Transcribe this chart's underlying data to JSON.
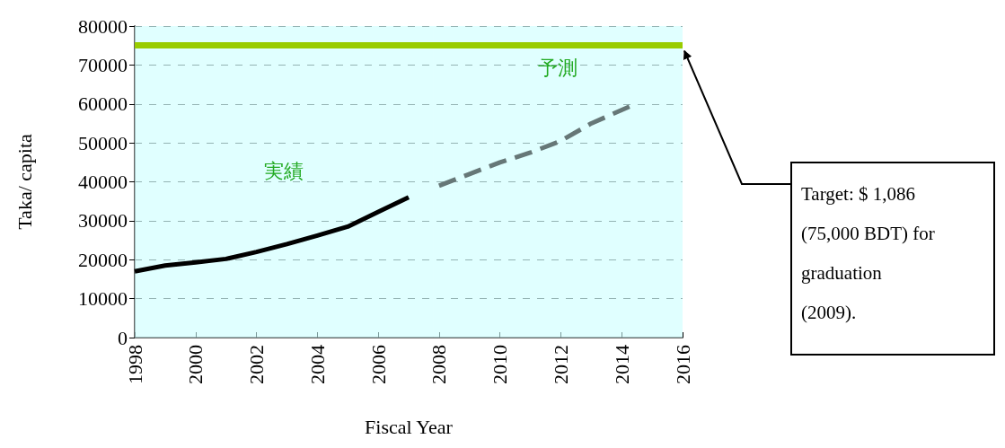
{
  "chart_data": {
    "type": "line",
    "xlabel": "Fiscal Year",
    "ylabel": "Taka/ capita",
    "xlim": [
      1998,
      2016
    ],
    "xticks": [
      1998,
      2000,
      2002,
      2004,
      2006,
      2008,
      2010,
      2012,
      2014,
      2016
    ],
    "ylim": [
      0,
      80000
    ],
    "yticks": [
      0,
      10000,
      20000,
      30000,
      40000,
      50000,
      60000,
      70000,
      80000
    ],
    "grid": "y",
    "marker": "none",
    "series": [
      {
        "color": "#000000",
        "line_style": "solid",
        "x": [
          1998,
          1999,
          2000,
          2001,
          2002,
          2003,
          2004,
          2005,
          2006,
          2007
        ],
        "values": [
          17000,
          18500,
          19300,
          20200,
          22000,
          24000,
          26200,
          28500,
          32300,
          36000
        ]
      },
      {
        "color": "#667777",
        "line_style": "dashed",
        "x": [
          2008,
          2009,
          2010,
          2011,
          2012,
          2013,
          2014.4
        ],
        "values": [
          39000,
          42000,
          45000,
          47500,
          50500,
          55000,
          59800
        ]
      }
    ],
    "ref_lines": [
      {
        "axis": "y",
        "value": 75000,
        "color": "#99cc00"
      }
    ],
    "bands": [
      {
        "axis": "x",
        "from": 1998,
        "to": 2007.8,
        "color": "#ccffff",
        "label": "実績"
      },
      {
        "axis": "x",
        "from": 2007.8,
        "to": 2016,
        "color": "#ccffff",
        "label": "予測"
      }
    ],
    "annotations": [
      {
        "text": "Target: $ 1,086\n(75,000 BDT) for\ngraduation\n(2009).",
        "x": 2016,
        "y": 75000
      }
    ]
  }
}
